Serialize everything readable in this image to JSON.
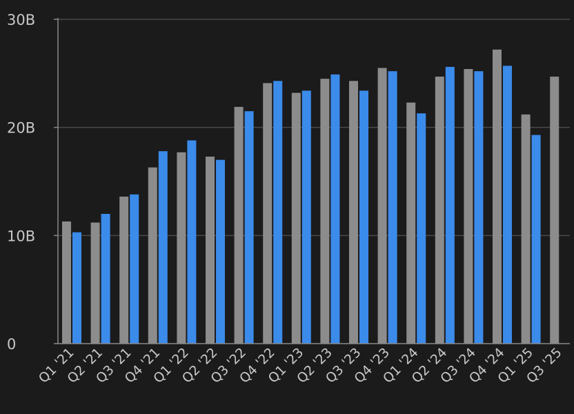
{
  "chart_data": {
    "type": "bar",
    "categories": [
      "Q1 '21",
      "Q2 '21",
      "Q3 '21",
      "Q4 '21",
      "Q1 '22",
      "Q2 '22",
      "Q3 '22",
      "Q4 '22",
      "Q1 '23",
      "Q2 '23",
      "Q3 '23",
      "Q4 '23",
      "Q1 '24",
      "Q2 '24",
      "Q3 '24",
      "Q4 '24",
      "Q1 '25",
      "Q3 '25"
    ],
    "series": [
      {
        "color": "#8c8c8c",
        "values": [
          11.3,
          11.2,
          13.6,
          16.3,
          17.7,
          17.3,
          21.9,
          24.1,
          23.2,
          24.5,
          24.3,
          25.5,
          22.3,
          24.7,
          25.4,
          27.2,
          21.2,
          24.7
        ]
      },
      {
        "color": "#3b8bea",
        "values": [
          10.3,
          12.0,
          13.8,
          17.8,
          18.8,
          17.0,
          21.5,
          24.3,
          23.4,
          24.9,
          23.4,
          25.2,
          21.3,
          25.6,
          25.2,
          25.7,
          19.3,
          null
        ]
      }
    ],
    "yticks": [
      {
        "value": 0,
        "label": "0"
      },
      {
        "value": 10,
        "label": "10B"
      },
      {
        "value": 20,
        "label": "20B"
      },
      {
        "value": 30,
        "label": "30B"
      }
    ],
    "ylim": [
      0,
      30
    ],
    "grid": true,
    "legend": "none",
    "colors": {
      "background": "#1b1b1c",
      "grid": "#4a4a4c",
      "axis": "#8a8a8a",
      "label": "#c8c8c8"
    }
  }
}
